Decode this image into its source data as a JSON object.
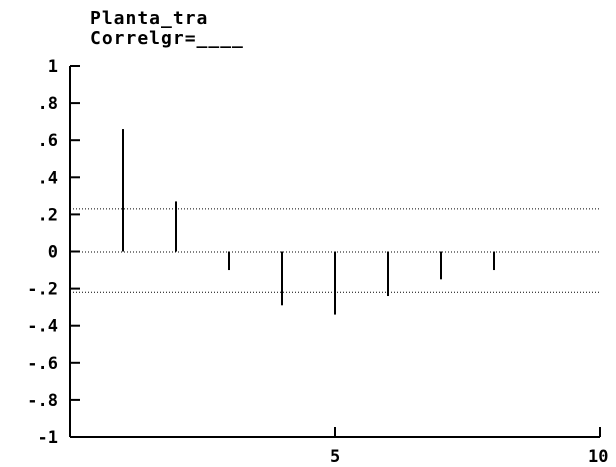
{
  "title_lines": [
    "Planta_tra",
    "Correlgr=____"
  ],
  "chart_data": {
    "type": "bar",
    "subtype": "correlogram",
    "title": "Planta_tra",
    "subtitle": "Correlgr=____",
    "xlim": [
      0,
      10
    ],
    "ylim": [
      -1,
      1
    ],
    "lags": [
      1,
      2,
      3,
      4,
      5,
      6,
      7,
      8
    ],
    "values": [
      0.66,
      0.27,
      -0.1,
      -0.29,
      -0.34,
      -0.24,
      -0.15,
      -0.1
    ],
    "x_ticks": [
      5,
      10
    ],
    "x_tick_labels": [
      "5",
      "10"
    ],
    "y_ticks": [
      1,
      0.8,
      0.6,
      0.4,
      0.2,
      0,
      -0.2,
      -0.4,
      -0.6,
      -0.8,
      -1
    ],
    "y_tick_labels": [
      "1",
      ".8",
      ".6",
      ".4",
      ".2",
      "0",
      "-.2",
      "-.4",
      "-.6",
      "-.8",
      "-1"
    ],
    "confidence_bounds": [
      0.23,
      -0.22
    ],
    "grid": false
  }
}
